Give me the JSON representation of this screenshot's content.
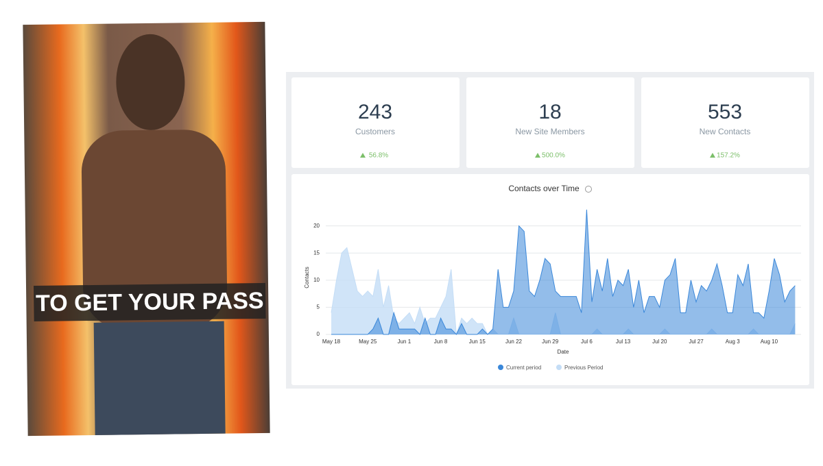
{
  "photo": {
    "caption": "TO GET YOUR PASS"
  },
  "kpis": [
    {
      "value": 243,
      "label": "Customers",
      "change": "56.8%"
    },
    {
      "value": 18,
      "label": "New Site Members",
      "change": "500.0%"
    },
    {
      "value": 553,
      "label": "New Contacts",
      "change": "157.2%"
    }
  ],
  "chart_data": {
    "type": "area",
    "title": "Contacts over Time",
    "ylabel": "Contacts",
    "xlabel": "Date",
    "categories": [
      "May 18",
      null,
      null,
      null,
      null,
      null,
      null,
      "May 25",
      null,
      null,
      null,
      null,
      null,
      null,
      "Jun 1",
      null,
      null,
      null,
      null,
      null,
      null,
      "Jun 8",
      null,
      null,
      null,
      null,
      null,
      null,
      "Jun 15",
      null,
      null,
      null,
      null,
      null,
      null,
      "Jun 22",
      null,
      null,
      null,
      null,
      null,
      null,
      "Jun 29",
      null,
      null,
      null,
      null,
      null,
      null,
      "Jul 6",
      null,
      null,
      null,
      null,
      null,
      null,
      "Jul 13",
      null,
      null,
      null,
      null,
      null,
      null,
      "Jul 20",
      null,
      null,
      null,
      null,
      null,
      null,
      "Jul 27",
      null,
      null,
      null,
      null,
      null,
      null,
      "Aug 3",
      null,
      null,
      null,
      null,
      null,
      null,
      "Aug 10",
      null,
      null,
      null,
      null,
      null
    ],
    "series": [
      {
        "name": "Current period",
        "color": "#3a87d9",
        "values": [
          0,
          0,
          0,
          0,
          0,
          0,
          0,
          0,
          1,
          3,
          0,
          0,
          4,
          1,
          1,
          1,
          1,
          0,
          3,
          0,
          0,
          3,
          1,
          1,
          0,
          2,
          0,
          0,
          0,
          1,
          0,
          1,
          12,
          5,
          5,
          8,
          20,
          19,
          8,
          7,
          10,
          14,
          13,
          8,
          7,
          7,
          7,
          7,
          4,
          23,
          6,
          12,
          8,
          14,
          7,
          10,
          9,
          12,
          5,
          10,
          4,
          7,
          7,
          5,
          10,
          11,
          14,
          4,
          4,
          10,
          6,
          9,
          8,
          10,
          13,
          9,
          4,
          4,
          11,
          9,
          13,
          4,
          4,
          3,
          8,
          14,
          11,
          6,
          8,
          9
        ]
      },
      {
        "name": "Previous Period",
        "color": "#c4ddf6",
        "values": [
          4,
          10,
          15,
          16,
          12,
          8,
          7,
          8,
          7,
          12,
          5,
          9,
          3,
          2,
          3,
          4,
          2,
          5,
          2,
          3,
          3,
          5,
          7,
          12,
          0,
          3,
          2,
          3,
          2,
          2,
          0,
          1,
          0,
          0,
          0,
          3,
          0,
          0,
          0,
          0,
          0,
          0,
          0,
          4,
          0,
          0,
          0,
          0,
          0,
          0,
          0,
          1,
          0,
          0,
          0,
          0,
          0,
          1,
          0,
          0,
          0,
          0,
          0,
          0,
          1,
          0,
          0,
          0,
          0,
          0,
          0,
          0,
          0,
          1,
          0,
          0,
          0,
          0,
          0,
          0,
          0,
          1,
          0,
          0,
          0,
          0,
          0,
          0,
          0,
          2
        ]
      }
    ],
    "ylim": [
      0,
      24
    ],
    "yticks": [
      0,
      5,
      10,
      15,
      20
    ],
    "grid": true
  }
}
